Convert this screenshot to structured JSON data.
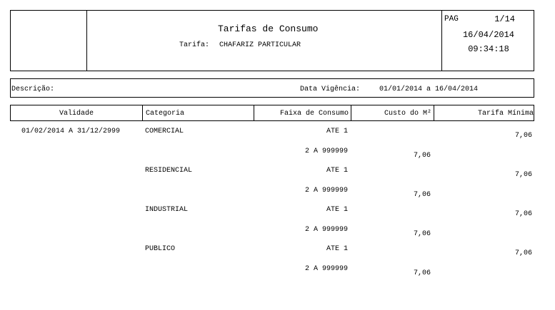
{
  "header": {
    "title": "Tarifas de Consumo",
    "subtitle_label": "Tarifa:",
    "subtitle_value": "CHAFARIZ PARTICULAR",
    "page_label": "PAG",
    "page_value": "1/14",
    "date": "16/04/2014",
    "time": "09:34:18"
  },
  "info": {
    "descricao_label": "Descrição:",
    "vigencia_label": "Data Vigência:",
    "vigencia_value": "01/01/2014 a 16/04/2014"
  },
  "table": {
    "columns": [
      "Validade",
      "Categoria",
      "Faixa de Consumo",
      "Custo do M²",
      "Tarifa Mínima"
    ],
    "validade": "01/02/2014 A 31/12/2999",
    "groups": [
      {
        "categoria": "COMERCIAL",
        "rows": [
          {
            "faixa": "ATE 1",
            "custo": "",
            "tarifa": "7,06"
          },
          {
            "faixa": "2 A 999999",
            "custo": "7,06",
            "tarifa": ""
          }
        ]
      },
      {
        "categoria": "RESIDENCIAL",
        "rows": [
          {
            "faixa": "ATE 1",
            "custo": "",
            "tarifa": "7,06"
          },
          {
            "faixa": "2 A 999999",
            "custo": "7,06",
            "tarifa": ""
          }
        ]
      },
      {
        "categoria": "INDUSTRIAL",
        "rows": [
          {
            "faixa": "ATE 1",
            "custo": "",
            "tarifa": "7,06"
          },
          {
            "faixa": "2 A 999999",
            "custo": "7,06",
            "tarifa": ""
          }
        ]
      },
      {
        "categoria": "PUBLICO",
        "rows": [
          {
            "faixa": "ATE 1",
            "custo": "",
            "tarifa": "7,06"
          },
          {
            "faixa": "2 A 999999",
            "custo": "7,06",
            "tarifa": ""
          }
        ]
      }
    ]
  }
}
